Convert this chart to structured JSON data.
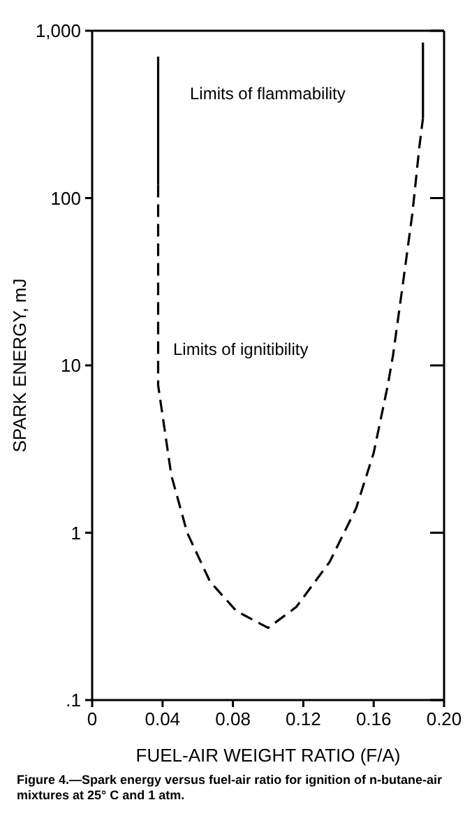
{
  "chart_data": {
    "type": "line",
    "xlabel": "FUEL-AIR WEIGHT RATIO (F/A)",
    "ylabel": "SPARK ENERGY, mJ",
    "log": "y",
    "grid": false,
    "marker": "none",
    "xlim": [
      0,
      0.2
    ],
    "xticks": [
      0,
      0.04,
      0.08,
      0.12,
      0.16,
      {
        "value": 0.2,
        "label": "0.20"
      }
    ],
    "ylim": [
      0.1,
      1000
    ],
    "yticks": [
      {
        "value": 0.1,
        "label": ".1"
      },
      1,
      10,
      100,
      {
        "value": 1000,
        "label": "1,000"
      }
    ],
    "series": [
      {
        "type": "line",
        "color": "#000000",
        "line_style": "solid",
        "x": [
          0.0375,
          0.0375
        ],
        "values": [
          120,
          700
        ]
      },
      {
        "type": "line",
        "color": "#000000",
        "line_style": "solid",
        "x": [
          0.188,
          0.188
        ],
        "values": [
          300,
          850
        ]
      },
      {
        "type": "line",
        "color": "#000000",
        "line_style": "dashed",
        "x": [
          0.0375,
          0.0375,
          0.045,
          0.054,
          0.067,
          0.082,
          0.1,
          0.116,
          0.135,
          0.15,
          0.16,
          0.168,
          0.171,
          0.177,
          0.182,
          0.186,
          0.188
        ],
        "values": [
          120,
          7.6,
          2.2,
          1.0,
          0.51,
          0.34,
          0.27,
          0.36,
          0.67,
          1.4,
          3.0,
          7.6,
          11.5,
          33,
          81,
          204,
          300
        ]
      }
    ],
    "annotations": [
      "Limits of flammability",
      "Limits of ignitibility",
      "Figure 4.—Spark energy versus fuel-air ratio for ignition of n-butane-air mixtures at 25° C and 1 atm."
    ]
  }
}
